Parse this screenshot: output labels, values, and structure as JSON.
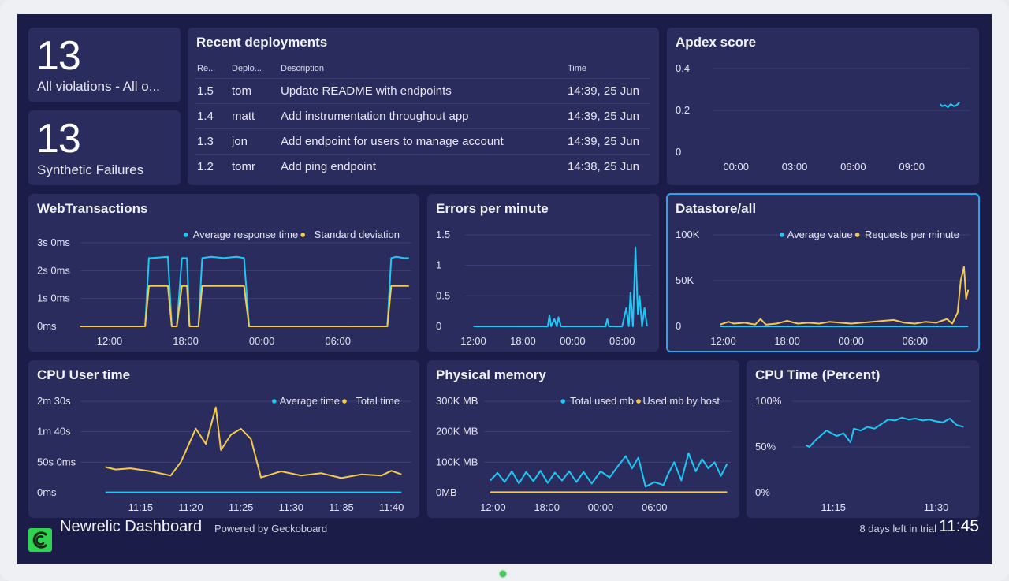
{
  "violations": {
    "number": "13",
    "label": "All violations - All o..."
  },
  "synthetic": {
    "number": "13",
    "label": "Synthetic Failures"
  },
  "deployments": {
    "title": "Recent deployments",
    "headers": [
      "Re...",
      "Deplo...",
      "Description",
      "Time"
    ],
    "rows": [
      [
        "1.5",
        "tom",
        "Update README with endpoints",
        "14:39, 25 Jun"
      ],
      [
        "1.4",
        "matt",
        "Add instrumentation throughout app",
        "14:39, 25 Jun"
      ],
      [
        "1.3",
        "jon",
        "Add endpoint for users to manage account",
        "14:39, 25 Jun"
      ],
      [
        "1.2",
        "tomr",
        "Add ping endpoint",
        "14:38, 25 Jun"
      ]
    ]
  },
  "footer": {
    "title": "Newrelic Dashboard",
    "powered": "Powered by Geckoboard",
    "trial": "8 days left in trial",
    "time": "11:45"
  },
  "colors": {
    "blue": "#1ec8f4",
    "yellow": "#f4c94e",
    "background": "#1b1d48",
    "card": "#2a2c5e",
    "selected_border": "#2aa6ee"
  },
  "icons": {
    "logo": "geckoboard-logo"
  },
  "chart_data": [
    {
      "id": "apdex",
      "type": "line",
      "title": "Apdex score",
      "y_ticks": [
        "0.4",
        "0.2",
        "0"
      ],
      "x_ticks": [
        "00:00",
        "03:00",
        "06:00",
        "09:00"
      ],
      "series": [
        {
          "color": "#1ec8f4",
          "x": [
            10.45,
            10.55,
            10.7,
            10.85,
            11.0,
            11.15,
            11.3,
            11.45
          ],
          "y": [
            0.23,
            0.22,
            0.225,
            0.215,
            0.23,
            0.22,
            0.225,
            0.24
          ]
        }
      ]
    },
    {
      "id": "webtx",
      "type": "line",
      "title": "WebTransactions",
      "y_ticks": [
        "3s 0ms",
        "2s 0ms",
        "1s 0ms",
        "0ms"
      ],
      "x_ticks": [
        "12:00",
        "18:00",
        "00:00",
        "06:00"
      ],
      "legend": [
        "Average response time",
        "Standard deviation"
      ],
      "series": [
        {
          "name": "Average response time",
          "color": "#1ec8f4",
          "x": [
            9.7,
            12.8,
            14.8,
            15.1,
            15.3,
            16.6,
            16.9,
            17.3,
            17.7,
            18.1,
            18.3,
            19.0,
            19.3,
            20.0,
            21.0,
            22.0,
            22.6,
            23.0,
            24.0,
            30.0,
            33.9,
            34.2,
            34.6,
            35.2,
            35.6
          ],
          "y": [
            0,
            0,
            0,
            2.45,
            2.45,
            2.5,
            0,
            0,
            2.45,
            2.45,
            0,
            0,
            2.45,
            2.5,
            2.45,
            2.5,
            2.45,
            0,
            0,
            0,
            0,
            2.45,
            2.5,
            2.45,
            2.45
          ]
        },
        {
          "name": "Standard deviation",
          "color": "#f4c94e",
          "x": [
            9.7,
            12.8,
            14.8,
            15.1,
            15.3,
            16.6,
            16.9,
            17.3,
            17.7,
            18.1,
            18.3,
            19.0,
            19.3,
            20.0,
            21.0,
            22.0,
            22.6,
            23.0,
            24.0,
            30.0,
            33.9,
            34.2,
            34.6,
            35.2,
            35.6
          ],
          "y": [
            0,
            0,
            0,
            1.45,
            1.45,
            1.45,
            0,
            0,
            1.45,
            1.45,
            0,
            0,
            1.45,
            1.45,
            1.45,
            1.45,
            1.45,
            0,
            0,
            0,
            0,
            1.45,
            1.45,
            1.45,
            1.45
          ]
        }
      ]
    },
    {
      "id": "errors",
      "type": "line",
      "title": "Errors per minute",
      "y_ticks": [
        "1.5",
        "1",
        "0.5",
        "0"
      ],
      "x_ticks": [
        "12:00",
        "18:00",
        "00:00",
        "06:00"
      ],
      "series": [
        {
          "color": "#1ec8f4",
          "x": [
            12.0,
            20.0,
            21.0,
            21.2,
            21.4,
            21.8,
            22.1,
            22.3,
            22.6,
            23.0,
            28.0,
            28.2,
            28.4,
            30.0,
            30.5,
            30.8,
            31.0,
            31.3,
            31.6,
            31.9,
            32.1,
            32.4,
            32.7,
            33.0
          ],
          "y": [
            0,
            0,
            0,
            0.18,
            0,
            0.12,
            0,
            0.15,
            0,
            0,
            0,
            0.12,
            0,
            0,
            0.3,
            0,
            0.55,
            0,
            1.3,
            0.2,
            0.5,
            0,
            0.3,
            0
          ]
        }
      ]
    },
    {
      "id": "datastore",
      "type": "line",
      "title": "Datastore/all",
      "y_ticks": [
        "100K",
        "50K",
        "0"
      ],
      "x_ticks": [
        "12:00",
        "18:00",
        "00:00",
        "06:00"
      ],
      "legend": [
        "Average value",
        "Requests per minute"
      ],
      "series": [
        {
          "name": "Average value",
          "color": "#1ec8f4",
          "x": [
            11.7,
            35.0
          ],
          "y": [
            0,
            0
          ]
        },
        {
          "name": "Requests per minute",
          "color": "#f4c94e",
          "x": [
            11.7,
            12.5,
            13.0,
            14.0,
            15.0,
            15.5,
            16.0,
            17.0,
            18.0,
            19.0,
            20.0,
            21.0,
            22.0,
            23.0,
            24.0,
            25.0,
            26.0,
            27.0,
            28.0,
            29.0,
            30.0,
            31.0,
            32.0,
            32.5,
            33.0,
            33.5,
            34.0,
            34.3,
            34.6,
            34.8,
            35.0
          ],
          "y": [
            2000,
            5000,
            3000,
            4000,
            2000,
            8000,
            2000,
            3000,
            6000,
            3000,
            4000,
            3000,
            5000,
            4000,
            3000,
            4000,
            5000,
            6000,
            7000,
            4000,
            3000,
            5000,
            4000,
            6000,
            8000,
            3000,
            15000,
            50000,
            65000,
            30000,
            40000
          ]
        }
      ]
    },
    {
      "id": "cpu_user",
      "type": "line",
      "title": "CPU User time",
      "y_ticks": [
        "2m 30s",
        "1m 40s",
        "50s 0ms",
        "0ms"
      ],
      "x_ticks": [
        "11:15",
        "11:20",
        "11:25",
        "11:30",
        "11:35",
        "11:40"
      ],
      "legend": [
        "Average time",
        "Total time"
      ],
      "series": [
        {
          "name": "Average time",
          "color": "#1ec8f4",
          "x": [
            11.5,
            41.0
          ],
          "y": [
            0.5,
            0.5
          ]
        },
        {
          "name": "Total time",
          "color": "#f4c94e",
          "x": [
            11.5,
            12.5,
            14.0,
            16.0,
            18.0,
            19.0,
            20.5,
            21.5,
            22.5,
            23.0,
            24.0,
            25.0,
            26.0,
            27.0,
            29.0,
            31.0,
            33.0,
            35.0,
            37.0,
            39.0,
            40.0,
            41.0
          ],
          "y": [
            42,
            38,
            40,
            35,
            28,
            50,
            105,
            80,
            140,
            70,
            95,
            105,
            88,
            25,
            35,
            28,
            32,
            24,
            30,
            28,
            36,
            30
          ]
        }
      ]
    },
    {
      "id": "memory",
      "type": "line",
      "title": "Physical memory",
      "y_ticks": [
        "300K MB",
        "200K MB",
        "100K MB",
        "0MB"
      ],
      "x_ticks": [
        "12:00",
        "18:00",
        "00:00",
        "06:00"
      ],
      "legend": [
        "Total used mb",
        "Used mb by host"
      ],
      "series": [
        {
          "name": "Total used mb",
          "color": "#1ec8f4",
          "x": [
            11.7,
            12.5,
            13.3,
            14.1,
            14.9,
            15.7,
            16.5,
            17.3,
            18.1,
            18.9,
            19.7,
            20.5,
            21.3,
            22.1,
            23.0,
            24.0,
            25.0,
            26.0,
            26.8,
            27.5,
            28.2,
            29.0,
            30.0,
            31.0,
            31.5,
            32.2,
            33.0,
            33.8,
            34.6,
            35.3,
            36.0,
            36.7,
            37.4,
            38.1
          ],
          "y": [
            40000,
            65000,
            35000,
            70000,
            30000,
            68000,
            38000,
            72000,
            32000,
            66000,
            40000,
            70000,
            35000,
            68000,
            30000,
            70000,
            50000,
            90000,
            120000,
            80000,
            115000,
            20000,
            35000,
            25000,
            60000,
            100000,
            40000,
            130000,
            70000,
            110000,
            80000,
            100000,
            55000,
            95000
          ]
        },
        {
          "name": "Used mb by host",
          "color": "#f4c94e",
          "x": [
            11.7,
            38.1
          ],
          "y": [
            1500,
            1500
          ]
        }
      ]
    },
    {
      "id": "cpu_time",
      "type": "line",
      "title": "CPU Time (Percent)",
      "y_ticks": [
        "100%",
        "50%",
        "0%"
      ],
      "x_ticks": [
        "11:15",
        "11:30"
      ],
      "series": [
        {
          "color": "#1ec8f4",
          "x": [
            11.0,
            11.5,
            12.5,
            14.0,
            15.5,
            16.5,
            17.5,
            18.0,
            19.0,
            20.0,
            21.0,
            22.0,
            23.0,
            24.0,
            25.0,
            26.0,
            27.0,
            28.0,
            29.0,
            30.0,
            31.0,
            32.0,
            33.0,
            34.0
          ],
          "y": [
            52,
            50,
            58,
            68,
            62,
            65,
            55,
            70,
            68,
            72,
            70,
            75,
            80,
            79,
            82,
            80,
            81,
            79,
            80,
            78,
            77,
            81,
            74,
            72
          ]
        }
      ]
    }
  ]
}
